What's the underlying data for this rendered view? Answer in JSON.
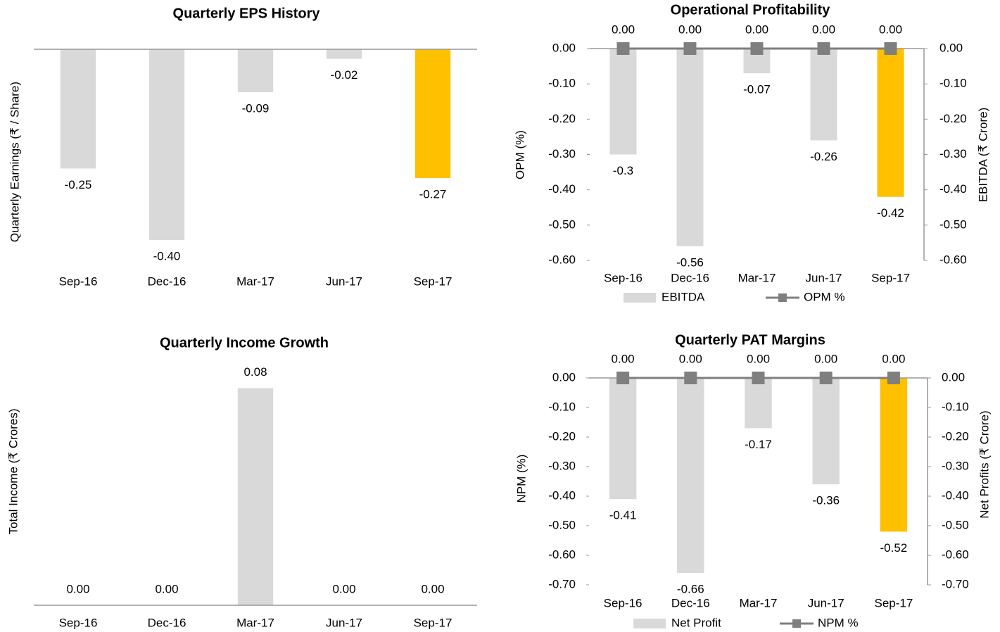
{
  "chart_data": [
    {
      "type": "bar",
      "title": "Quarterly EPS History",
      "ylabel": "Quarterly Earnings (₹ / Share)",
      "categories": [
        "Sep-16",
        "Dec-16",
        "Mar-17",
        "Jun-17",
        "Sep-17"
      ],
      "values": [
        -0.25,
        -0.4,
        -0.09,
        -0.02,
        -0.27
      ],
      "value_labels": [
        "-0.25",
        "-0.40",
        "-0.09",
        "-0.02",
        "-0.27"
      ],
      "colors": [
        "#d9d9d9",
        "#d9d9d9",
        "#d9d9d9",
        "#d9d9d9",
        "#ffc000"
      ],
      "ylim": [
        -0.45,
        0
      ]
    },
    {
      "type": "combo",
      "title": "Operational Profitability",
      "ylabel": "OPM (%)",
      "y2label": "EBITDA (₹ Crore)",
      "categories": [
        "Sep-16",
        "Dec-16",
        "Mar-17",
        "Jun-17",
        "Sep-17"
      ],
      "series": [
        {
          "name": "EBITDA",
          "type": "bar",
          "axis": "y2",
          "color": "#d9d9d9",
          "colors": [
            "#d9d9d9",
            "#d9d9d9",
            "#d9d9d9",
            "#d9d9d9",
            "#ffc000"
          ],
          "values": [
            -0.3,
            -0.56,
            -0.07,
            -0.26,
            -0.42
          ]
        },
        {
          "name": "OPM %",
          "type": "line",
          "color": "#7f7f7f",
          "values": [
            0,
            0,
            0,
            0,
            0
          ],
          "value_labels": [
            "0.00",
            "0.00",
            "0.00",
            "0.00",
            "0.00"
          ]
        }
      ],
      "ylim": [
        -0.6,
        0
      ],
      "yticks": [
        {
          "value": 0,
          "label": "0.00"
        },
        {
          "value": -0.1,
          "label": "-0.10"
        },
        {
          "value": -0.2,
          "label": "-0.20"
        },
        {
          "value": -0.3,
          "label": "-0.30"
        },
        {
          "value": -0.4,
          "label": "-0.40"
        },
        {
          "value": -0.5,
          "label": "-0.50"
        },
        {
          "value": -0.6,
          "label": "-0.60"
        }
      ],
      "y2lim": [
        -0.6,
        0
      ],
      "y2ticks": [
        {
          "value": 0,
          "label": "0.00"
        },
        {
          "value": -0.1,
          "label": "-0.10"
        },
        {
          "value": -0.2,
          "label": "-0.20"
        },
        {
          "value": -0.3,
          "label": "-0.30"
        },
        {
          "value": -0.4,
          "label": "-0.40"
        },
        {
          "value": -0.5,
          "label": "-0.50"
        },
        {
          "value": -0.6,
          "label": "-0.60"
        }
      ],
      "legend": "bottom"
    },
    {
      "type": "bar",
      "title": "Quarterly Income Growth",
      "ylabel": "Total Income (₹ Crores)",
      "categories": [
        "Sep-16",
        "Dec-16",
        "Mar-17",
        "Jun-17",
        "Sep-17"
      ],
      "values": [
        0,
        0,
        0.08,
        0,
        0
      ],
      "value_labels": [
        "0.00",
        "0.00",
        "0.08",
        "0.00",
        "0.00"
      ],
      "colors": [
        "#d9d9d9",
        "#d9d9d9",
        "#d9d9d9",
        "#d9d9d9",
        "#d9d9d9"
      ],
      "ylim": [
        0,
        0.09
      ]
    },
    {
      "type": "combo",
      "title": "Quarterly PAT Margins",
      "ylabel": "NPM (%)",
      "y2label": "Net Profits (₹ Crore)",
      "categories": [
        "Sep-16",
        "Dec-16",
        "Mar-17",
        "Jun-17",
        "Sep-17"
      ],
      "series": [
        {
          "name": "Net Profit",
          "type": "bar",
          "axis": "y2",
          "color": "#d9d9d9",
          "colors": [
            "#d9d9d9",
            "#d9d9d9",
            "#d9d9d9",
            "#d9d9d9",
            "#ffc000"
          ],
          "values": [
            -0.41,
            -0.66,
            -0.17,
            -0.36,
            -0.52
          ]
        },
        {
          "name": "NPM %",
          "type": "line",
          "color": "#7f7f7f",
          "values": [
            0,
            0,
            0,
            0,
            0
          ],
          "value_labels": [
            "0.00",
            "0.00",
            "0.00",
            "0.00",
            "0.00"
          ]
        }
      ],
      "ylim": [
        -0.7,
        0
      ],
      "yticks": [
        {
          "value": 0,
          "label": "0.00"
        },
        {
          "value": -0.1,
          "label": "-0.10"
        },
        {
          "value": -0.2,
          "label": "-0.20"
        },
        {
          "value": -0.3,
          "label": "-0.30"
        },
        {
          "value": -0.4,
          "label": "-0.40"
        },
        {
          "value": -0.5,
          "label": "-0.50"
        },
        {
          "value": -0.6,
          "label": "-0.60"
        },
        {
          "value": -0.7,
          "label": "-0.70"
        }
      ],
      "y2lim": [
        -0.7,
        0
      ],
      "y2ticks": [
        {
          "value": 0,
          "label": "0.00"
        },
        {
          "value": -0.1,
          "label": "-0.10"
        },
        {
          "value": -0.2,
          "label": "-0.20"
        },
        {
          "value": -0.3,
          "label": "-0.30"
        },
        {
          "value": -0.4,
          "label": "-0.40"
        },
        {
          "value": -0.5,
          "label": "-0.50"
        },
        {
          "value": -0.6,
          "label": "-0.60"
        },
        {
          "value": -0.7,
          "label": "-0.70"
        }
      ],
      "legend": "bottom"
    }
  ]
}
